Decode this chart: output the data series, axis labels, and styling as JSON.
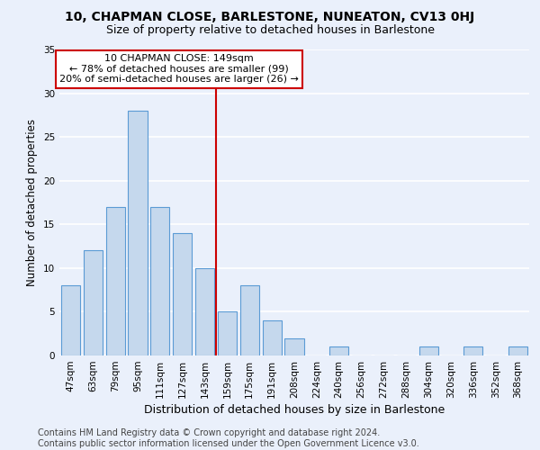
{
  "title1": "10, CHAPMAN CLOSE, BARLESTONE, NUNEATON, CV13 0HJ",
  "title2": "Size of property relative to detached houses in Barlestone",
  "xlabel": "Distribution of detached houses by size in Barlestone",
  "ylabel": "Number of detached properties",
  "categories": [
    "47sqm",
    "63sqm",
    "79sqm",
    "95sqm",
    "111sqm",
    "127sqm",
    "143sqm",
    "159sqm",
    "175sqm",
    "191sqm",
    "208sqm",
    "224sqm",
    "240sqm",
    "256sqm",
    "272sqm",
    "288sqm",
    "304sqm",
    "320sqm",
    "336sqm",
    "352sqm",
    "368sqm"
  ],
  "values": [
    8,
    12,
    17,
    28,
    17,
    14,
    10,
    5,
    8,
    4,
    2,
    0,
    1,
    0,
    0,
    0,
    1,
    0,
    1,
    0,
    1
  ],
  "bar_color": "#c5d8ed",
  "bar_edge_color": "#5b9bd5",
  "vline_x": 6.5,
  "vline_color": "#cc0000",
  "annotation_text": "10 CHAPMAN CLOSE: 149sqm\n← 78% of detached houses are smaller (99)\n20% of semi-detached houses are larger (26) →",
  "annotation_box_color": "white",
  "annotation_box_edge": "#cc0000",
  "ylim": [
    0,
    35
  ],
  "yticks": [
    0,
    5,
    10,
    15,
    20,
    25,
    30,
    35
  ],
  "footer": "Contains HM Land Registry data © Crown copyright and database right 2024.\nContains public sector information licensed under the Open Government Licence v3.0.",
  "bg_color": "#eaf0fb",
  "plot_bg_color": "#eaf0fb",
  "grid_color": "white",
  "title1_fontsize": 10,
  "title2_fontsize": 9,
  "xlabel_fontsize": 9,
  "ylabel_fontsize": 8.5,
  "tick_fontsize": 7.5,
  "annotation_fontsize": 8,
  "footer_fontsize": 7
}
